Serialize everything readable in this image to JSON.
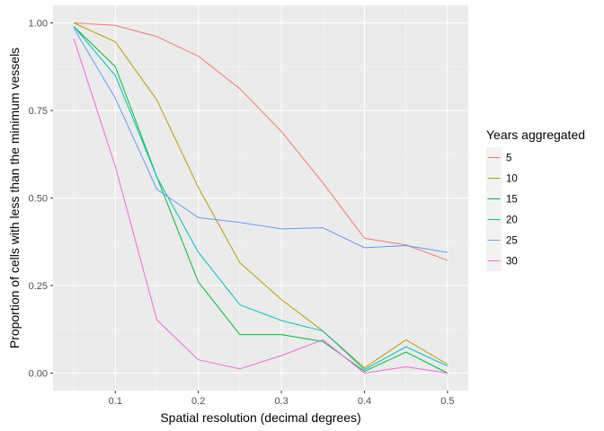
{
  "chart_data": {
    "type": "line",
    "title": "",
    "xlabel": "Spatial resolution (decimal degrees)",
    "ylabel": "Proportion of cells with less than the minimum vessels",
    "xlim": [
      0.025,
      0.525
    ],
    "ylim": [
      -0.05,
      1.05
    ],
    "x": [
      0.05,
      0.1,
      0.15,
      0.2,
      0.25,
      0.3,
      0.35,
      0.4,
      0.45,
      0.5
    ],
    "x_ticks": [
      0.1,
      0.2,
      0.3,
      0.4,
      0.5
    ],
    "x_tick_labels": [
      "0.1",
      "0.2",
      "0.3",
      "0.4",
      "0.5"
    ],
    "y_ticks": [
      0,
      0.25,
      0.5,
      0.75,
      1
    ],
    "y_tick_labels": [
      "0.00",
      "0.25",
      "0.50",
      "0.75",
      "1.00"
    ],
    "grid": true,
    "legend": {
      "title": "Years aggregated",
      "position": "right"
    },
    "series": [
      {
        "name": "5",
        "color": "#F8766D",
        "values": [
          1.0,
          0.993,
          0.961,
          0.905,
          0.812,
          0.69,
          0.543,
          0.385,
          0.366,
          0.322
        ]
      },
      {
        "name": "10",
        "color": "#B79F00",
        "values": [
          1.0,
          0.946,
          0.78,
          0.53,
          0.315,
          0.21,
          0.12,
          0.015,
          0.095,
          0.025
        ]
      },
      {
        "name": "15",
        "color": "#00BA38",
        "values": [
          0.99,
          0.875,
          0.56,
          0.26,
          0.11,
          0.11,
          0.09,
          0.005,
          0.06,
          0.0
        ]
      },
      {
        "name": "20",
        "color": "#00BFC4",
        "values": [
          0.99,
          0.85,
          0.56,
          0.345,
          0.195,
          0.15,
          0.12,
          0.01,
          0.075,
          0.02
        ]
      },
      {
        "name": "25",
        "color": "#619CFF",
        "values": [
          0.985,
          0.785,
          0.525,
          0.444,
          0.43,
          0.412,
          0.415,
          0.358,
          0.364,
          0.345
        ]
      },
      {
        "name": "30",
        "color": "#F564E3",
        "values": [
          0.955,
          0.59,
          0.152,
          0.038,
          0.012,
          0.05,
          0.095,
          0.0,
          0.018,
          0.0
        ]
      }
    ]
  }
}
